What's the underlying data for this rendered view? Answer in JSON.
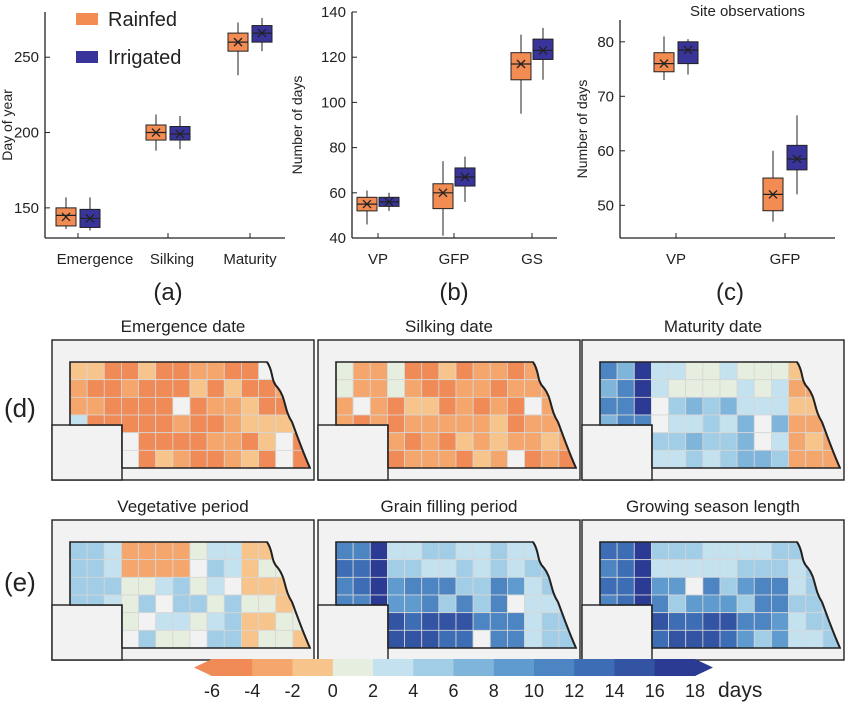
{
  "legend": {
    "items": [
      {
        "label": "Rainfed",
        "color": "#f28c52"
      },
      {
        "label": "Irrigated",
        "color": "#39349a"
      }
    ]
  },
  "panel_labels": {
    "a": "(a)",
    "b": "(b)",
    "c": "(c)",
    "d": "(d)",
    "e": "(e)"
  },
  "chart_data": [
    {
      "type": "box",
      "panel": "a",
      "title": "",
      "ylabel": "Day of year",
      "categories": [
        "Emergence",
        "Silking",
        "Maturity"
      ],
      "yticks": [
        150,
        200,
        250
      ],
      "ylim": [
        130,
        280
      ],
      "series": [
        {
          "name": "Rainfed",
          "color": "#f28c52",
          "boxes": [
            {
              "whisker_low": 136,
              "q1": 138,
              "median": 145,
              "q3": 150,
              "whisker_high": 157,
              "mean": 144
            },
            {
              "whisker_low": 188,
              "q1": 195,
              "median": 200,
              "q3": 205,
              "whisker_high": 212,
              "mean": 200
            },
            {
              "whisker_low": 238,
              "q1": 254,
              "median": 260,
              "q3": 266,
              "whisker_high": 273,
              "mean": 260
            }
          ]
        },
        {
          "name": "Irrigated",
          "color": "#39349a",
          "boxes": [
            {
              "whisker_low": 135,
              "q1": 137,
              "median": 143,
              "q3": 149,
              "whisker_high": 157,
              "mean": 143
            },
            {
              "whisker_low": 189,
              "q1": 195,
              "median": 199,
              "q3": 204,
              "whisker_high": 211,
              "mean": 199
            },
            {
              "whisker_low": 254,
              "q1": 260,
              "median": 266,
              "q3": 271,
              "whisker_high": 276,
              "mean": 266
            }
          ]
        }
      ]
    },
    {
      "type": "box",
      "panel": "b",
      "title": "",
      "ylabel": "Number of days",
      "categories": [
        "VP",
        "GFP",
        "GS"
      ],
      "yticks": [
        40,
        60,
        80,
        100,
        120,
        140
      ],
      "ylim": [
        40,
        140
      ],
      "series": [
        {
          "name": "Rainfed",
          "color": "#f28c52",
          "boxes": [
            {
              "whisker_low": 46,
              "q1": 52,
              "median": 55,
              "q3": 58,
              "whisker_high": 61,
              "mean": 55
            },
            {
              "whisker_low": 41,
              "q1": 53,
              "median": 60,
              "q3": 64,
              "whisker_high": 74,
              "mean": 60
            },
            {
              "whisker_low": 95,
              "q1": 110,
              "median": 117,
              "q3": 122,
              "whisker_high": 130,
              "mean": 117
            }
          ]
        },
        {
          "name": "Irrigated",
          "color": "#39349a",
          "boxes": [
            {
              "whisker_low": 52,
              "q1": 54,
              "median": 56,
              "q3": 58,
              "whisker_high": 60,
              "mean": 56
            },
            {
              "whisker_low": 56,
              "q1": 63,
              "median": 67,
              "q3": 71,
              "whisker_high": 76,
              "mean": 67
            },
            {
              "whisker_low": 110,
              "q1": 119,
              "median": 123,
              "q3": 128,
              "whisker_high": 133,
              "mean": 123
            }
          ]
        }
      ]
    },
    {
      "type": "box",
      "panel": "c",
      "title": "Site observations",
      "ylabel": "Number of days",
      "categories": [
        "VP",
        "GFP"
      ],
      "yticks": [
        50,
        60,
        70,
        80
      ],
      "ylim": [
        44,
        84
      ],
      "series": [
        {
          "name": "Rainfed",
          "color": "#f28c52",
          "boxes": [
            {
              "whisker_low": 73,
              "q1": 74.5,
              "median": 76,
              "q3": 78,
              "whisker_high": 81,
              "mean": 76
            },
            {
              "whisker_low": 47,
              "q1": 49,
              "median": 52,
              "q3": 55,
              "whisker_high": 60,
              "mean": 52
            }
          ]
        },
        {
          "name": "Irrigated",
          "color": "#39349a",
          "boxes": [
            {
              "whisker_low": 74,
              "q1": 76,
              "median": 78.5,
              "q3": 80,
              "whisker_high": 80.5,
              "mean": 78.5
            },
            {
              "whisker_low": 52,
              "q1": 56.5,
              "median": 58.5,
              "q3": 61,
              "whisker_high": 66.5,
              "mean": 58.5
            }
          ]
        }
      ]
    }
  ],
  "maps": [
    {
      "title": "Emergence date",
      "scheme": "emergence"
    },
    {
      "title": "Silking date",
      "scheme": "silking"
    },
    {
      "title": "Maturity date",
      "scheme": "maturity"
    },
    {
      "title": "Vegetative period",
      "scheme": "vegetative"
    },
    {
      "title": "Grain filling period",
      "scheme": "grainfill"
    },
    {
      "title": "Growing season length",
      "scheme": "season"
    }
  ],
  "colorbar": {
    "unit": "days",
    "ticks": [
      "-6",
      "-4",
      "-2",
      "0",
      "2",
      "4",
      "6",
      "8",
      "10",
      "12",
      "14",
      "16",
      "18"
    ],
    "colors": [
      "#f08a56",
      "#f5a66c",
      "#f7c58b",
      "#e6eedf",
      "#c4e1f0",
      "#a2cde6",
      "#80b5db",
      "#5f9bcf",
      "#4d85c2",
      "#3d6db4",
      "#3353a3",
      "#2b3a92"
    ]
  }
}
